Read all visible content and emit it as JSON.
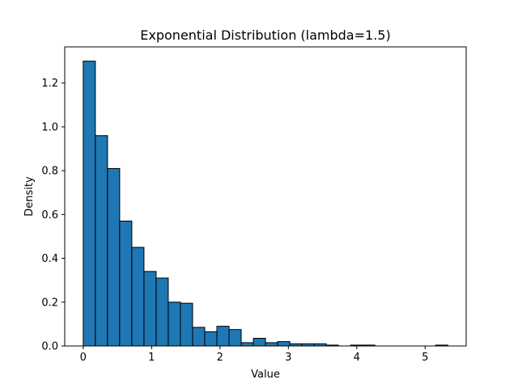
{
  "chart_data": {
    "type": "bar",
    "title": "Exponential Distribution (lambda=1.5)",
    "xlabel": "Value",
    "ylabel": "Density",
    "xlim": [
      -0.27,
      5.6
    ],
    "ylim": [
      0,
      1.365
    ],
    "xticks": [
      0,
      1,
      2,
      3,
      4,
      5
    ],
    "yticks": [
      0.0,
      0.2,
      0.4,
      0.6,
      0.8,
      1.0,
      1.2
    ],
    "ytick_labels": [
      "0.0",
      "0.2",
      "0.4",
      "0.6",
      "0.8",
      "1.0",
      "1.2"
    ],
    "grid": false,
    "bar_color": "#1f77b4",
    "edge_color": "#000000",
    "bin_edges": [
      0.0,
      0.1777,
      0.3554,
      0.5331,
      0.7108,
      0.8885,
      1.0662,
      1.2439,
      1.4216,
      1.5993,
      1.777,
      1.9547,
      2.1324,
      2.3101,
      2.4878,
      2.6655,
      2.8432,
      3.0209,
      3.1986,
      3.3763,
      3.554,
      3.7317,
      3.9094,
      4.0871,
      4.2648,
      4.4425,
      4.6202,
      4.7979,
      4.9756,
      5.1533,
      5.331
    ],
    "values": [
      1.3,
      0.96,
      0.81,
      0.57,
      0.45,
      0.34,
      0.31,
      0.2,
      0.195,
      0.085,
      0.065,
      0.09,
      0.075,
      0.015,
      0.035,
      0.015,
      0.02,
      0.01,
      0.01,
      0.01,
      0.004,
      0.0,
      0.004,
      0.004,
      0.0,
      0.0,
      0.0,
      0.0,
      0.0,
      0.004
    ]
  }
}
